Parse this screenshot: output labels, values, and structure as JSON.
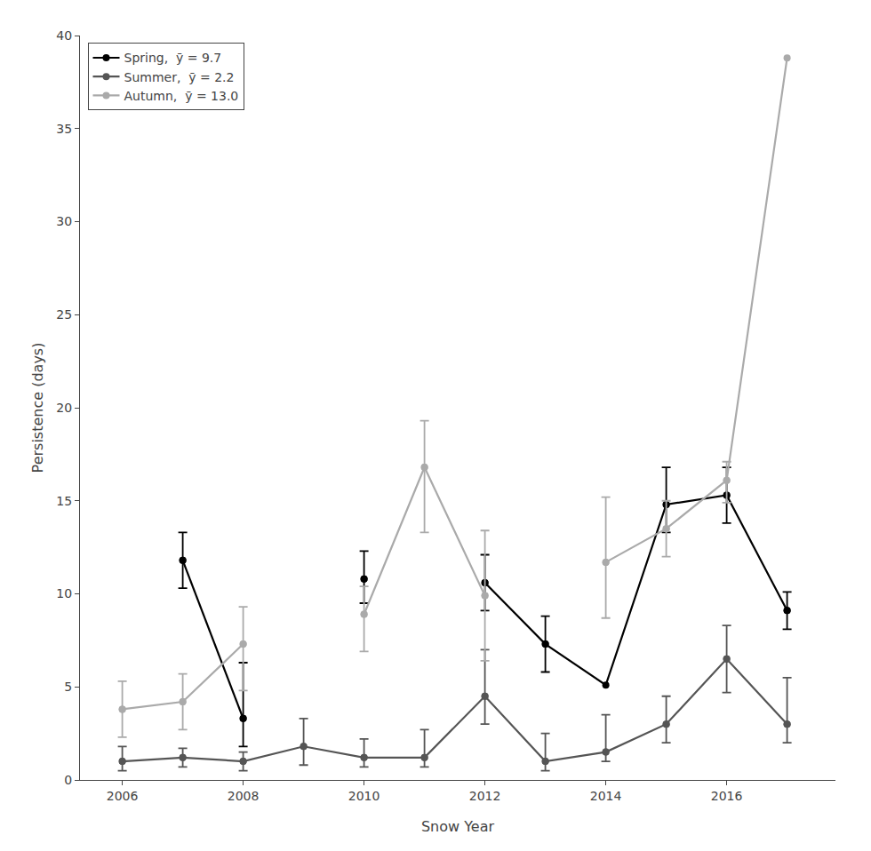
{
  "chart_data": {
    "type": "line",
    "x_label": "Snow Year",
    "y_label": "Persistence (days)",
    "x": [
      2006,
      2007,
      2008,
      2009,
      2010,
      2011,
      2012,
      2013,
      2014,
      2015,
      2016,
      2017
    ],
    "series": [
      {
        "name": "Spring,  ȳ = 9.7",
        "color": "#000000",
        "marker": "circle",
        "line_style": "solid",
        "values": [
          null,
          11.8,
          3.3,
          null,
          10.8,
          null,
          10.6,
          7.3,
          5.1,
          14.8,
          15.3,
          9.1
        ],
        "error_minus": [
          null,
          1.5,
          1.5,
          null,
          1.3,
          null,
          1.5,
          1.5,
          null,
          1.5,
          1.5,
          1.0
        ],
        "error_plus": [
          null,
          1.5,
          3.0,
          null,
          1.5,
          null,
          1.5,
          1.5,
          null,
          2.0,
          1.5,
          1.0
        ]
      },
      {
        "name": "Summer,  ȳ = 2.2",
        "color": "#555555",
        "marker": "circle",
        "line_style": "solid",
        "values": [
          1.0,
          1.2,
          1.0,
          1.8,
          1.2,
          1.2,
          4.5,
          1.0,
          1.5,
          3.0,
          6.5,
          3.0
        ],
        "error_minus": [
          0.5,
          0.5,
          0.5,
          1.0,
          0.5,
          0.5,
          1.5,
          0.5,
          0.5,
          1.0,
          1.8,
          1.0
        ],
        "error_plus": [
          0.8,
          0.5,
          0.5,
          1.5,
          1.0,
          1.5,
          2.5,
          1.5,
          2.0,
          1.5,
          1.8,
          2.5
        ]
      },
      {
        "name": "Autumn,  ȳ = 13.0",
        "color": "#aaaaaa",
        "marker": "circle",
        "line_style": "solid",
        "values": [
          3.8,
          4.2,
          7.3,
          null,
          8.9,
          16.8,
          9.9,
          null,
          11.7,
          13.5,
          16.1,
          38.8
        ],
        "error_minus": [
          1.5,
          1.5,
          2.5,
          null,
          2.0,
          3.5,
          3.5,
          null,
          3.0,
          1.5,
          1.2,
          null
        ],
        "error_plus": [
          1.5,
          1.5,
          2.0,
          null,
          1.5,
          2.5,
          3.5,
          null,
          3.5,
          1.5,
          1.0,
          null
        ]
      }
    ],
    "xlim": [
      2005.3,
      2017.8
    ],
    "xticks": [
      2006,
      2008,
      2010,
      2012,
      2014,
      2016
    ],
    "ylim": [
      0,
      40
    ],
    "yticks": [
      0,
      5,
      10,
      15,
      20,
      25,
      30,
      35,
      40
    ],
    "grid": false,
    "legend": "upper left"
  }
}
